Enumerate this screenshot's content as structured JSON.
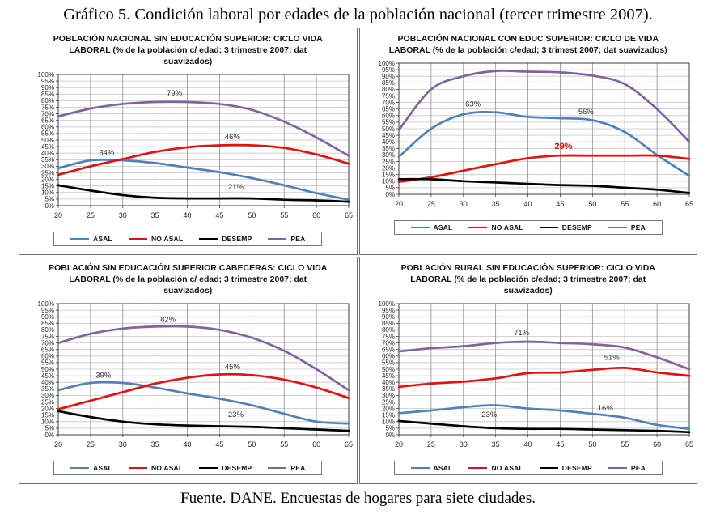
{
  "figure": {
    "title": "Gráfico 5. Condición laboral por edades de la población nacional (tercer trimestre 2007).",
    "source": "Fuente. DANE. Encuestas de hogares para siete ciudades."
  },
  "palette": {
    "asal": "#4F81BD",
    "no_asal": "#E80F0F",
    "desemp": "#000000",
    "pea": "#8064A2",
    "grid_h": "#c6c6c6",
    "grid_v": "#8f8f8f",
    "plot_border": "#3d3d3d",
    "axis_text": "#262626",
    "annotation_text": "#333333"
  },
  "chart_data": [
    {
      "type": "line",
      "title": "POBLACIÓN NACIONAL SIN EDUCACIÓN SUPERIOR: CICLO VIDA LABORAL  (%  de la población  c/ edad; 3 trimestre 2007;  dat suavizados)",
      "x": [
        20,
        25,
        30,
        35,
        40,
        45,
        50,
        55,
        60,
        65
      ],
      "xlim": [
        20,
        65
      ],
      "ylim": [
        0,
        100
      ],
      "ytick_step": 5,
      "grid": true,
      "legend_position": "bottom",
      "series": [
        {
          "name": "ASAL",
          "color_key": "asal",
          "values": [
            28.5,
            34.5,
            34.5,
            32.5,
            29,
            25.5,
            21,
            15.5,
            9.5,
            4.5
          ]
        },
        {
          "name": "NO ASAL",
          "color_key": "no_asal",
          "values": [
            23.5,
            30,
            35.5,
            41,
            44.5,
            46,
            46,
            44,
            39,
            32
          ]
        },
        {
          "name": "DESEMP",
          "color_key": "desemp",
          "values": [
            15.5,
            11.5,
            8,
            6,
            5.5,
            5.5,
            5.5,
            4.5,
            4,
            3
          ]
        },
        {
          "name": "PEA",
          "color_key": "pea",
          "values": [
            68,
            74,
            77.5,
            79,
            79,
            77.5,
            73,
            64,
            52,
            38
          ]
        }
      ],
      "annotations": [
        {
          "text": "34%",
          "x": 27.5,
          "y": 38.5
        },
        {
          "text": "79%",
          "x": 38,
          "y": 84
        },
        {
          "text": "46%",
          "x": 47,
          "y": 50.5
        },
        {
          "text": "21%",
          "x": 47.5,
          "y": 12.5
        }
      ]
    },
    {
      "type": "line",
      "title": "POBLACIÓN NACIONAL CON EDUC SUPERIOR:  CICLO DE VIDA LABORAL (%  de la población  c/edad; 3 trimest 2007;  dat suavizados)",
      "x": [
        20,
        25,
        30,
        35,
        40,
        45,
        50,
        55,
        60,
        65
      ],
      "xlim": [
        20,
        65
      ],
      "ylim": [
        0,
        100
      ],
      "ytick_step": 5,
      "grid": true,
      "legend_position": "bottom",
      "series": [
        {
          "name": "ASAL",
          "color_key": "asal",
          "values": [
            28.5,
            50,
            61,
            62.5,
            59,
            58,
            56.5,
            47.5,
            30,
            14
          ]
        },
        {
          "name": "NO ASAL",
          "color_key": "no_asal",
          "values": [
            9.5,
            13,
            18,
            23,
            27.5,
            29.5,
            29.5,
            29.5,
            29.5,
            27
          ]
        },
        {
          "name": "DESEMP",
          "color_key": "desemp",
          "values": [
            11.5,
            11.5,
            10,
            9,
            8,
            7,
            6.5,
            5,
            3.5,
            1
          ]
        },
        {
          "name": "PEA",
          "color_key": "pea",
          "values": [
            49,
            80,
            90,
            94,
            93.5,
            93,
            90.5,
            84,
            65,
            40
          ]
        }
      ],
      "annotations": [
        {
          "text": "63%",
          "x": 31.5,
          "y": 67
        },
        {
          "text": "56%",
          "x": 49,
          "y": 61
        },
        {
          "text": "29%",
          "x": 45.5,
          "y": 34.5,
          "color": "#E80F0F",
          "bold": true,
          "size": 11
        }
      ]
    },
    {
      "type": "line",
      "title": "POBLACIÓN  SIN EDUCACIÓN SUPERIOR CABECERAS: CICLO VIDA LABORAL  (%  de la población  c/ edad; 3 trimestre 2007;  dat suavizados)",
      "x": [
        20,
        25,
        30,
        35,
        40,
        45,
        50,
        55,
        60,
        65
      ],
      "xlim": [
        20,
        65
      ],
      "ylim": [
        0,
        100
      ],
      "ytick_step": 5,
      "grid": true,
      "legend_position": "bottom",
      "series": [
        {
          "name": "ASAL",
          "color_key": "asal",
          "values": [
            34,
            39.5,
            39.5,
            36,
            31.5,
            27.5,
            22.5,
            16,
            10,
            8.5
          ]
        },
        {
          "name": "NO ASAL",
          "color_key": "no_asal",
          "values": [
            19.5,
            26,
            32.5,
            39,
            43.5,
            46,
            45.5,
            42,
            36,
            28
          ]
        },
        {
          "name": "DESEMP",
          "color_key": "desemp",
          "values": [
            18,
            13.5,
            10,
            8,
            7,
            6.5,
            6,
            5,
            4,
            3
          ]
        },
        {
          "name": "PEA",
          "color_key": "pea",
          "values": [
            70,
            77,
            81,
            82.5,
            82.5,
            80,
            74,
            64,
            50,
            34
          ]
        }
      ],
      "annotations": [
        {
          "text": "39%",
          "x": 27,
          "y": 43.5
        },
        {
          "text": "82%",
          "x": 37,
          "y": 86
        },
        {
          "text": "45%",
          "x": 47,
          "y": 50
        },
        {
          "text": "23%",
          "x": 47.5,
          "y": 13.5
        }
      ]
    },
    {
      "type": "line",
      "title": "POBLACIÓN RURAL SIN EDUCACIÓN SUPERIOR: CICLO VIDA LABORAL  (%  de la población  c/edad; 3 trimestre 2007;  dat suavizados)",
      "x": [
        20,
        25,
        30,
        35,
        40,
        45,
        50,
        55,
        60,
        65
      ],
      "xlim": [
        20,
        65
      ],
      "ylim": [
        0,
        100
      ],
      "ytick_step": 5,
      "grid": true,
      "legend_position": "bottom",
      "series": [
        {
          "name": "ASAL",
          "color_key": "asal",
          "values": [
            16.5,
            18.5,
            21,
            22.5,
            20,
            18.5,
            16,
            13,
            7.5,
            4.5
          ]
        },
        {
          "name": "NO ASAL",
          "color_key": "no_asal",
          "values": [
            36.5,
            39,
            40.5,
            43,
            47,
            47.5,
            49.5,
            51,
            47.5,
            45
          ]
        },
        {
          "name": "DESEMP",
          "color_key": "desemp",
          "values": [
            10.5,
            8.5,
            6.5,
            5,
            4.5,
            4.5,
            4,
            3.5,
            3,
            2
          ]
        },
        {
          "name": "PEA",
          "color_key": "pea",
          "values": [
            63.5,
            66,
            67.5,
            70,
            71,
            70,
            69,
            66.5,
            59,
            50
          ]
        }
      ],
      "annotations": [
        {
          "text": "71%",
          "x": 39,
          "y": 76
        },
        {
          "text": "51%",
          "x": 53,
          "y": 57
        },
        {
          "text": "23%",
          "x": 34,
          "y": 13.5
        },
        {
          "text": "16%",
          "x": 52,
          "y": 18.5
        }
      ]
    }
  ]
}
